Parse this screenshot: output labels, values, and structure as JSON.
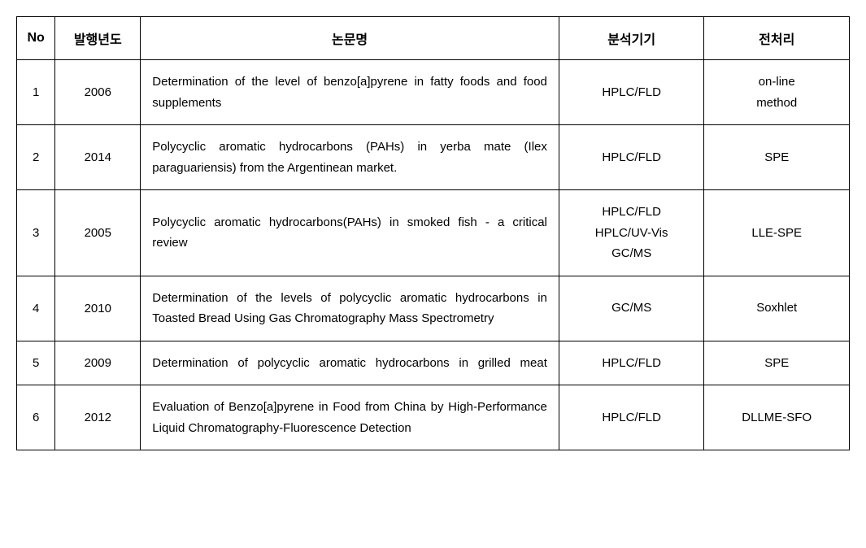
{
  "headers": {
    "no": "No",
    "year": "발행년도",
    "title": "논문명",
    "instrument": "분석기기",
    "pretreatment": "전처리"
  },
  "rows": [
    {
      "no": "1",
      "year": "2006",
      "title": "Determination of the level of benzo[a]pyrene in fatty foods and food supplements",
      "instrument": "HPLC/FLD",
      "pretreatment": "on-line\nmethod"
    },
    {
      "no": "2",
      "year": "2014",
      "title": "Polycyclic aromatic hydrocarbons (PAHs) in yerba mate (Ilex paraguariensis) from the Argentinean market.",
      "instrument": "HPLC/FLD",
      "pretreatment": "SPE"
    },
    {
      "no": "3",
      "year": "2005",
      "title": "Polycyclic aromatic hydrocarbons(PAHs) in smoked fish - a critical review",
      "instrument": "HPLC/FLD\nHPLC/UV-Vis\nGC/MS",
      "pretreatment": "LLE-SPE"
    },
    {
      "no": "4",
      "year": "2010",
      "title": "Determination of the levels of polycyclic aromatic hydrocarbons in Toasted Bread Using Gas Chromatography Mass Spectrometry",
      "instrument": "GC/MS",
      "pretreatment": "Soxhlet"
    },
    {
      "no": "5",
      "year": "2009",
      "title": "Determination of polycyclic aromatic hydrocarbons in grilled meat",
      "instrument": "HPLC/FLD",
      "pretreatment": "SPE"
    },
    {
      "no": "6",
      "year": "2012",
      "title": "Evaluation of Benzo[a]pyrene in Food from China by High-Performance Liquid Chromatography-Fluorescence Detection",
      "instrument": "HPLC/FLD",
      "pretreatment": "DLLME-SFO"
    }
  ],
  "colors": {
    "border": "#000000",
    "background": "#ffffff",
    "text": "#000000"
  },
  "font": {
    "header_size": 16,
    "body_size": 15
  }
}
